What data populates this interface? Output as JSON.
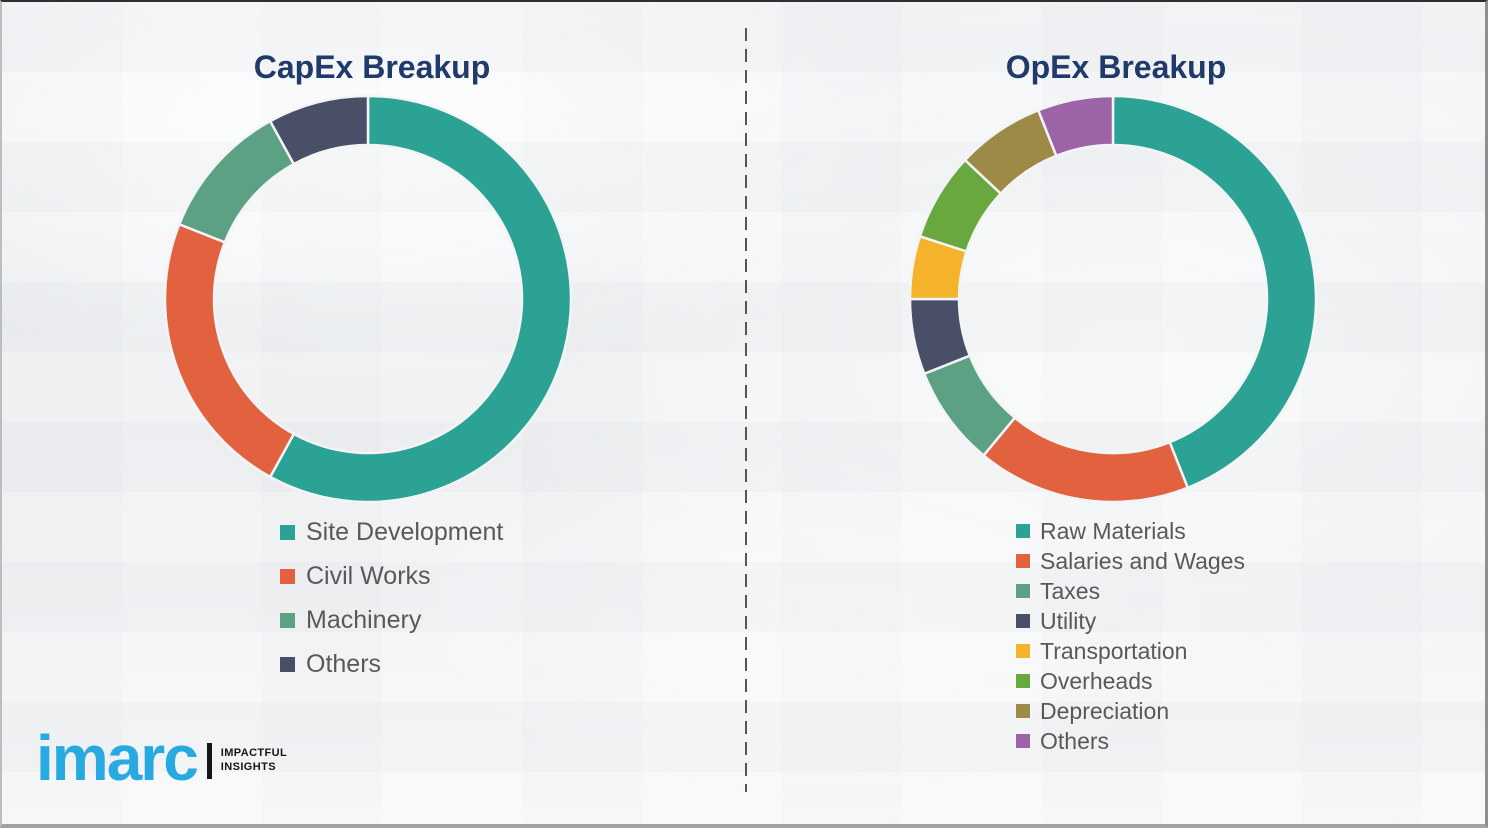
{
  "chart_data": [
    {
      "type": "donut",
      "title": "CapEx Breakup",
      "legend_position": "below-left",
      "values_unit": "percent of ring, estimated from arc angles (no numeric labels shown in image)",
      "segments": [
        {
          "label": "Site Development",
          "value": 58,
          "color": "#2BA293"
        },
        {
          "label": "Civil Works",
          "value": 23,
          "color": "#E2613F"
        },
        {
          "label": "Machinery",
          "value": 11,
          "color": "#5CA183"
        },
        {
          "label": "Others",
          "value": 8,
          "color": "#4A4F68"
        }
      ]
    },
    {
      "type": "donut",
      "title": "OpEx Breakup",
      "legend_position": "below-left",
      "values_unit": "percent of ring, estimated from arc angles (no numeric labels shown in image)",
      "segments": [
        {
          "label": "Raw Materials",
          "value": 44,
          "color": "#2BA293"
        },
        {
          "label": "Salaries and Wages",
          "value": 17,
          "color": "#E2613F"
        },
        {
          "label": "Taxes",
          "value": 8,
          "color": "#5CA183"
        },
        {
          "label": "Utility",
          "value": 6,
          "color": "#4A4F68"
        },
        {
          "label": "Transportation",
          "value": 5,
          "color": "#F4B32B"
        },
        {
          "label": "Overheads",
          "value": 7,
          "color": "#68A83E"
        },
        {
          "label": "Depreciation",
          "value": 7,
          "color": "#9C8A46"
        },
        {
          "label": "Others",
          "value": 6,
          "color": "#9C64A6"
        }
      ]
    }
  ],
  "logo": {
    "brand": "imarc",
    "tagline_line1": "IMPACTFUL",
    "tagline_line2": "INSIGHTS"
  },
  "theme": {
    "title_color": "#203A6B",
    "legend_text_color": "#595959",
    "brand_blue": "#29A9E1",
    "divider_color": "#555555",
    "background": "#F0F1F3"
  }
}
